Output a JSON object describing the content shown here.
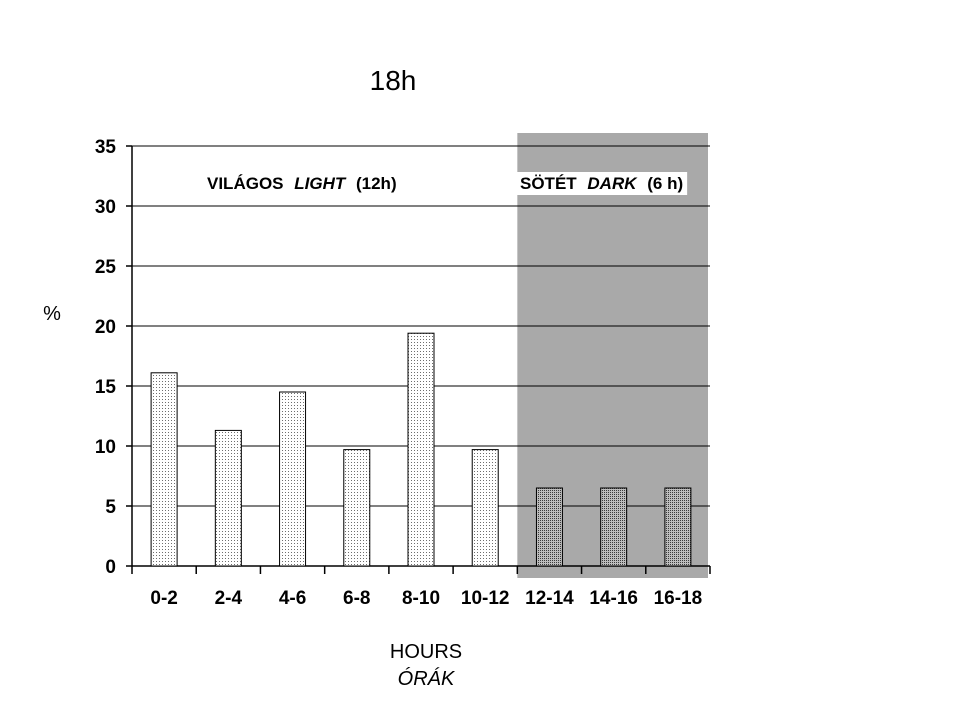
{
  "chart_data": {
    "type": "bar",
    "title": "18h",
    "ylabel": "%",
    "xlabel": "HOURS",
    "xlabel_alt": "ÓRÁK",
    "ylim": [
      0,
      35
    ],
    "yticks": [
      "0",
      "5",
      "10",
      "15",
      "20",
      "25",
      "30",
      "35"
    ],
    "grid": true,
    "categories": [
      "0-2",
      "2-4",
      "4-6",
      "6-8",
      "8-10",
      "10-12",
      "12-14",
      "14-16",
      "16-18"
    ],
    "values": [
      16.1,
      11.3,
      14.5,
      9.7,
      19.4,
      9.7,
      6.5,
      6.5,
      6.5
    ],
    "light_region": {
      "label_prefix": "VILÁGOS",
      "label_italic": "LIGHT",
      "label_suffix": "(12h)",
      "categories": [
        "0-2",
        "2-4",
        "4-6",
        "6-8",
        "8-10",
        "10-12"
      ]
    },
    "dark_region": {
      "label_prefix": "SÖTÉT",
      "label_italic": "DARK",
      "label_suffix": "(6 h)",
      "categories": [
        "12-14",
        "14-16",
        "16-18"
      ],
      "shade_color": "#a9a9a9"
    },
    "colors": {
      "light_bar": "#f2f2f2",
      "dark_bar": "#8a8a8a",
      "gridline": "#000000"
    }
  }
}
